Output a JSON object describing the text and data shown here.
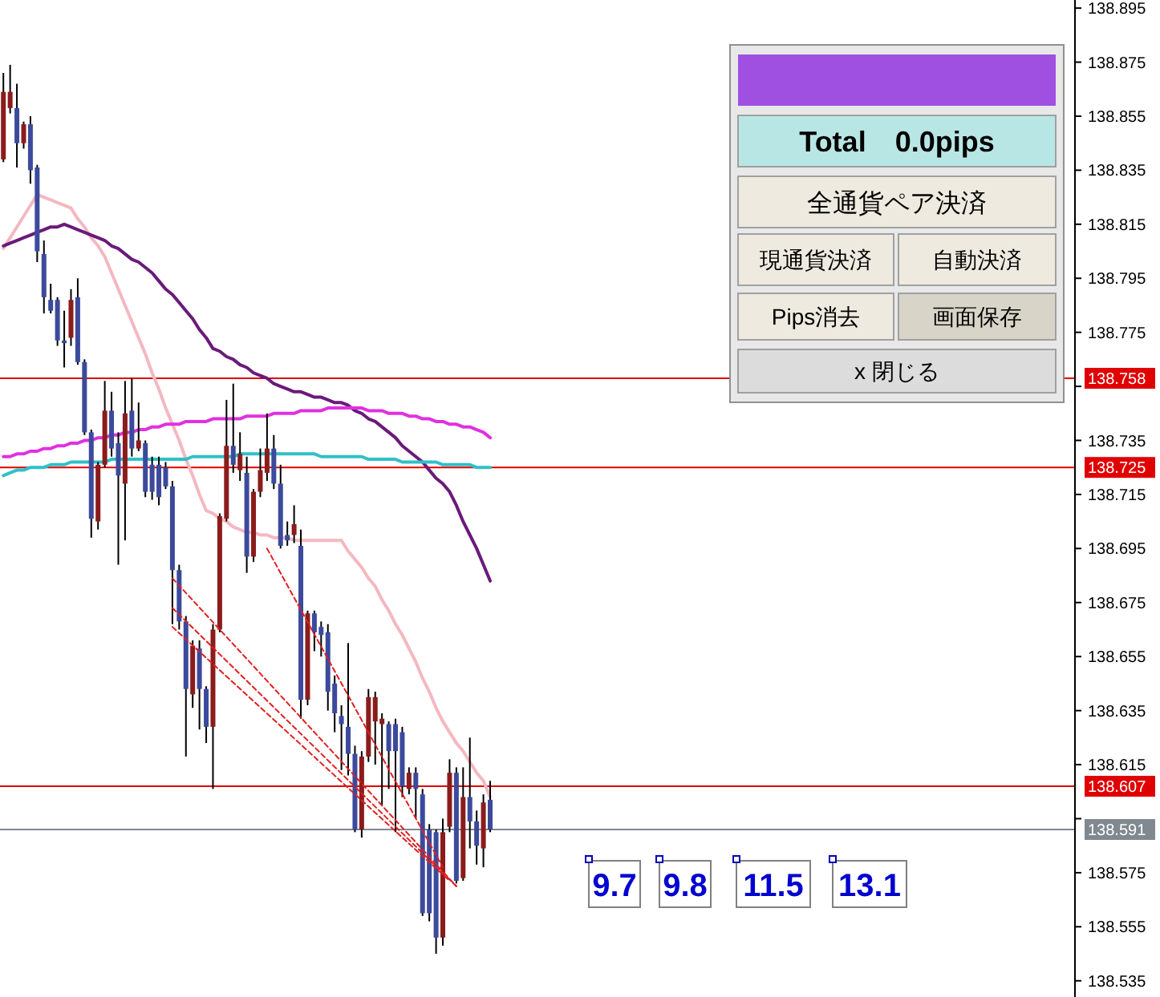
{
  "chart_data": {
    "type": "candlestick",
    "categories": [
      null,
      null,
      null,
      null,
      null,
      null,
      null,
      null,
      null,
      null,
      null,
      null,
      null,
      null,
      null,
      null,
      null,
      null,
      null,
      null,
      null,
      null,
      null,
      null,
      null,
      null,
      null,
      null,
      null,
      null,
      null,
      null,
      null,
      null,
      null,
      null,
      null,
      null,
      null,
      null,
      null,
      null,
      null,
      null,
      null,
      null,
      null,
      null,
      null,
      null,
      null,
      null,
      null,
      null,
      null,
      null,
      null,
      null,
      null,
      null,
      null,
      null,
      null,
      null,
      null,
      null,
      null,
      null,
      null,
      null,
      null,
      null,
      null,
      null,
      null,
      null,
      null,
      null,
      null,
      null,
      null,
      null,
      null,
      null,
      null,
      null,
      null,
      null,
      null,
      null,
      null,
      null,
      null,
      null,
      null,
      null,
      null,
      null,
      null,
      null,
      null,
      null,
      null,
      null,
      null,
      null,
      null,
      null,
      null,
      null,
      null,
      null,
      null,
      null,
      null,
      null,
      null,
      null,
      null,
      null,
      null,
      null,
      null,
      null,
      null,
      null,
      null,
      null,
      null,
      null,
      null,
      null,
      null,
      null,
      null,
      null,
      null,
      null,
      null,
      null,
      null,
      null,
      null,
      null,
      null,
      null,
      null,
      null,
      null,
      null,
      null,
      null,
      null,
      null,
      null,
      null,
      null,
      null,
      null
    ],
    "ohlc": [
      [
        138.839,
        138.871,
        138.838,
        138.864
      ],
      [
        138.858,
        138.874,
        138.856,
        138.864
      ],
      [
        138.858,
        138.867,
        138.836,
        138.845
      ],
      [
        138.845,
        138.853,
        138.843,
        138.852
      ],
      [
        138.852,
        138.855,
        138.83,
        138.835
      ],
      [
        138.836,
        138.837,
        138.801,
        138.805
      ],
      [
        138.804,
        138.809,
        138.782,
        138.788
      ],
      [
        138.787,
        138.793,
        138.782,
        138.783
      ],
      [
        138.787,
        138.788,
        138.77,
        138.772
      ],
      [
        138.772,
        138.783,
        138.762,
        138.771
      ],
      [
        138.773,
        138.791,
        138.77,
        138.787
      ],
      [
        138.788,
        138.795,
        138.763,
        138.764
      ],
      [
        138.764,
        138.765,
        138.737,
        138.738
      ],
      [
        138.738,
        138.739,
        138.699,
        138.706
      ],
      [
        138.705,
        138.727,
        138.702,
        138.726
      ],
      [
        138.726,
        138.757,
        138.725,
        138.746
      ],
      [
        138.746,
        138.753,
        138.729,
        138.732
      ],
      [
        138.734,
        138.738,
        138.689,
        138.722
      ],
      [
        138.719,
        138.757,
        138.698,
        138.745
      ],
      [
        138.746,
        138.758,
        138.729,
        138.732
      ],
      [
        138.732,
        138.749,
        138.731,
        138.735
      ],
      [
        138.734,
        138.735,
        138.714,
        138.716
      ],
      [
        138.726,
        138.729,
        138.713,
        138.716
      ],
      [
        138.726,
        138.729,
        138.711,
        138.714
      ],
      [
        138.725,
        138.727,
        138.717,
        138.718
      ],
      [
        138.718,
        138.72,
        138.667,
        138.687
      ],
      [
        138.687,
        138.689,
        138.665,
        138.668
      ],
      [
        138.668,
        138.67,
        138.618,
        138.643
      ],
      [
        138.641,
        138.661,
        138.636,
        138.659
      ],
      [
        138.658,
        138.661,
        138.628,
        138.643
      ],
      [
        138.643,
        138.644,
        138.623,
        138.629
      ],
      [
        138.629,
        138.667,
        138.606,
        138.665
      ],
      [
        138.665,
        138.708,
        138.664,
        138.707
      ],
      [
        138.706,
        138.75,
        138.705,
        138.733
      ],
      [
        138.733,
        138.756,
        138.723,
        138.726
      ],
      [
        138.724,
        138.738,
        138.72,
        138.73
      ],
      [
        138.723,
        138.729,
        138.686,
        138.692
      ],
      [
        138.692,
        138.717,
        138.69,
        138.716
      ],
      [
        138.716,
        138.732,
        138.714,
        138.724
      ],
      [
        138.723,
        138.745,
        138.72,
        138.732
      ],
      [
        138.732,
        138.737,
        138.717,
        138.719
      ],
      [
        138.719,
        138.726,
        138.695,
        138.696
      ],
      [
        138.7,
        138.705,
        138.696,
        138.698
      ],
      [
        138.7,
        138.711,
        138.697,
        138.704
      ],
      [
        138.696,
        138.702,
        138.632,
        138.639
      ],
      [
        138.639,
        138.672,
        138.637,
        138.671
      ],
      [
        138.671,
        138.672,
        138.657,
        138.664
      ],
      [
        138.666,
        138.668,
        138.655,
        138.663
      ],
      [
        138.664,
        138.667,
        138.635,
        138.642
      ],
      [
        138.645,
        138.648,
        138.627,
        138.634
      ],
      [
        138.633,
        138.637,
        138.613,
        138.63
      ],
      [
        138.629,
        138.66,
        138.611,
        138.619
      ],
      [
        138.619,
        138.622,
        138.59,
        138.591
      ],
      [
        138.591,
        138.62,
        138.588,
        138.618
      ],
      [
        138.618,
        138.643,
        138.616,
        138.64
      ],
      [
        138.631,
        138.642,
        138.615,
        138.64
      ],
      [
        138.63,
        138.634,
        138.6,
        138.632
      ],
      [
        138.63,
        138.631,
        138.606,
        138.62
      ],
      [
        138.63,
        138.632,
        138.59,
        138.62
      ],
      [
        138.627,
        138.629,
        138.603,
        138.607
      ],
      [
        138.606,
        138.614,
        138.604,
        138.612
      ],
      [
        138.612,
        138.614,
        138.595,
        138.606
      ],
      [
        138.604,
        138.606,
        138.559,
        138.56
      ],
      [
        138.591,
        138.593,
        138.557,
        138.56
      ],
      [
        138.59,
        138.591,
        138.545,
        138.551
      ],
      [
        138.551,
        138.595,
        138.548,
        138.59
      ],
      [
        138.592,
        138.617,
        138.59,
        138.612
      ],
      [
        138.612,
        138.614,
        138.571,
        138.572
      ],
      [
        138.573,
        138.614,
        138.572,
        138.603
      ],
      [
        138.603,
        138.625,
        138.584,
        138.594
      ],
      [
        138.594,
        138.598,
        138.578,
        138.585
      ],
      [
        138.584,
        138.604,
        138.577,
        138.601
      ],
      [
        138.602,
        138.609,
        138.59,
        138.591
      ],
      null,
      null,
      null,
      null,
      null,
      null,
      null,
      null,
      null,
      null,
      null,
      null,
      null,
      null,
      null,
      null,
      null,
      null,
      null,
      null,
      null,
      null,
      null,
      null,
      null,
      null,
      null,
      null,
      null,
      null,
      null,
      null,
      null,
      null,
      null,
      null,
      null,
      null,
      null,
      null,
      null,
      null,
      null,
      null,
      null,
      null,
      null,
      null,
      null,
      null,
      null,
      null,
      null,
      null,
      null,
      null,
      null,
      null,
      null,
      null,
      null,
      null,
      null,
      null,
      null,
      null,
      null,
      null,
      null,
      null,
      null,
      null,
      null,
      null,
      null,
      null,
      null,
      null,
      null,
      null,
      null,
      null,
      null,
      null,
      null,
      null
    ],
    "colors": [
      "#8b1c1c",
      "#8b1c1c",
      "#3c4a9c",
      "#8b1c1c",
      "#3c4a9c",
      "#3c4a9c",
      "#3c4a9c",
      "#3c4a9c",
      "#3c4a9c",
      "#3c4a9c",
      "#8b1c1c",
      "#3c4a9c",
      "#3c4a9c",
      "#3c4a9c",
      "#8b1c1c",
      "#8b1c1c",
      "#3c4a9c",
      "#3c4a9c",
      "#8b1c1c",
      "#3c4a9c",
      "#8b1c1c",
      "#3c4a9c",
      "#3c4a9c",
      "#3c4a9c",
      "#3c4a9c",
      "#3c4a9c",
      "#3c4a9c",
      "#3c4a9c",
      "#8b1c1c",
      "#3c4a9c",
      "#3c4a9c",
      "#8b1c1c",
      "#8b1c1c",
      "#8b1c1c",
      "#3c4a9c",
      "#8b1c1c",
      "#3c4a9c",
      "#8b1c1c",
      "#8b1c1c",
      "#8b1c1c",
      "#3c4a9c",
      "#3c4a9c",
      "#3c4a9c",
      "#8b1c1c",
      "#3c4a9c",
      "#8b1c1c",
      "#3c4a9c",
      "#3c4a9c",
      "#3c4a9c",
      "#3c4a9c",
      "#3c4a9c",
      "#3c4a9c",
      "#3c4a9c",
      "#8b1c1c",
      "#8b1c1c",
      "#8b1c1c",
      "#8b1c1c",
      "#3c4a9c",
      "#3c4a9c",
      "#3c4a9c",
      "#8b1c1c",
      "#3c4a9c",
      "#3c4a9c",
      "#3c4a9c",
      "#3c4a9c",
      "#8b1c1c",
      "#8b1c1c",
      "#3c4a9c",
      "#8b1c1c",
      "#3c4a9c",
      "#3c4a9c",
      "#8b1c1c",
      "#3c4a9c",
      null,
      null,
      null,
      null,
      null,
      null,
      null,
      null,
      null,
      null,
      null,
      null,
      null,
      null,
      null,
      null,
      null,
      null,
      null,
      null,
      null,
      null,
      null,
      null,
      null,
      null,
      null,
      null,
      null,
      null,
      null,
      null,
      null,
      null,
      null,
      null,
      null,
      null,
      null,
      null,
      null,
      null,
      null,
      null,
      null,
      null,
      null,
      null,
      null,
      null,
      null,
      null,
      null,
      null,
      null,
      null,
      null,
      null,
      null,
      null,
      null,
      null,
      null,
      null,
      null,
      null,
      null,
      null,
      null,
      null,
      null,
      null,
      null,
      null,
      null,
      null,
      null,
      null,
      null,
      null,
      null,
      null,
      null,
      null,
      null,
      null
    ],
    "series": [
      {
        "type": "line",
        "color": "#f4b8c0",
        "values": [
          138.806,
          138.81,
          138.814,
          138.818,
          138.822,
          138.826,
          138.825,
          138.824,
          138.823,
          138.822,
          138.821,
          138.817,
          138.814,
          138.81,
          138.807,
          138.803,
          138.797,
          138.791,
          138.785,
          138.779,
          138.773,
          138.767,
          138.76,
          138.754,
          138.747,
          138.741,
          138.735,
          138.728,
          138.722,
          138.715,
          138.709,
          138.708,
          138.706,
          138.705,
          138.703,
          138.702,
          138.701,
          138.701,
          138.7,
          138.7,
          138.699,
          138.699,
          138.699,
          138.698,
          138.698,
          138.698,
          138.698,
          138.698,
          138.698,
          138.698,
          138.698,
          138.694,
          138.691,
          138.688,
          138.684,
          138.681,
          138.676,
          138.672,
          138.667,
          138.663,
          138.658,
          138.653,
          138.647,
          138.642,
          138.636,
          138.631,
          138.627,
          138.623,
          138.62,
          138.616,
          138.612,
          138.609,
          138.603,
          null,
          null,
          null,
          null,
          null,
          null,
          null,
          null,
          null,
          null,
          null,
          null,
          null,
          null,
          null,
          null,
          null,
          null,
          null,
          null,
          null,
          null,
          null,
          null,
          null,
          null,
          null,
          null,
          null,
          null,
          null,
          null,
          null,
          null,
          null,
          null,
          null,
          null,
          null,
          null,
          null,
          null,
          null,
          null,
          null,
          null,
          null,
          null,
          null,
          null,
          null,
          null,
          null,
          null,
          null,
          null,
          null,
          null,
          null,
          null,
          null,
          null,
          null,
          null,
          null,
          null,
          null,
          null,
          null,
          null,
          null,
          null,
          null,
          null,
          null,
          null,
          null,
          null,
          null,
          null,
          null,
          null,
          null,
          null,
          null,
          null
        ]
      },
      {
        "type": "line",
        "color": "#6a1a7a",
        "values": [
          138.807,
          138.808,
          138.809,
          138.81,
          138.811,
          138.812,
          138.813,
          138.814,
          138.814,
          138.815,
          138.814,
          138.813,
          138.812,
          138.811,
          138.81,
          138.809,
          138.807,
          138.806,
          138.804,
          138.802,
          138.801,
          138.799,
          138.797,
          138.794,
          138.791,
          138.789,
          138.786,
          138.783,
          138.78,
          138.776,
          138.773,
          138.769,
          138.768,
          138.766,
          138.765,
          138.763,
          138.762,
          138.76,
          138.759,
          138.758,
          138.756,
          138.755,
          138.754,
          138.753,
          138.753,
          138.752,
          138.751,
          138.751,
          138.75,
          138.749,
          138.749,
          138.748,
          138.746,
          138.745,
          138.743,
          138.742,
          138.74,
          138.738,
          138.736,
          138.733,
          138.731,
          138.729,
          138.727,
          138.724,
          138.721,
          138.719,
          138.716,
          138.711,
          138.705,
          138.7,
          138.695,
          138.689,
          138.683,
          null,
          null,
          null,
          null,
          null,
          null,
          null,
          null,
          null,
          null,
          null,
          null,
          null,
          null,
          null,
          null,
          null,
          null,
          null,
          null,
          null,
          null,
          null,
          null,
          null,
          null,
          null,
          null,
          null,
          null,
          null,
          null,
          null,
          null,
          null,
          null,
          null,
          null,
          null,
          null,
          null,
          null,
          null,
          null,
          null,
          null,
          null,
          null,
          null,
          null,
          null,
          null,
          null,
          null,
          null,
          null,
          null,
          null,
          null,
          null,
          null,
          null,
          null,
          null,
          null,
          null,
          null,
          null,
          null,
          null,
          null,
          null,
          null,
          null,
          null,
          null,
          null,
          null,
          null,
          null,
          null,
          null,
          null,
          null,
          null,
          null
        ]
      },
      {
        "type": "line",
        "color": "#e030e0",
        "values": [
          138.729,
          138.729,
          138.73,
          138.73,
          138.731,
          138.731,
          138.732,
          138.732,
          138.733,
          138.733,
          138.734,
          138.734,
          138.735,
          138.735,
          138.736,
          138.736,
          138.737,
          138.737,
          138.738,
          138.738,
          138.739,
          138.739,
          138.74,
          138.74,
          138.741,
          138.741,
          138.741,
          138.742,
          138.742,
          138.742,
          138.742,
          138.743,
          138.743,
          138.743,
          138.743,
          138.743,
          138.744,
          138.744,
          138.744,
          138.744,
          138.745,
          138.745,
          138.745,
          138.745,
          138.746,
          138.746,
          138.746,
          138.746,
          138.747,
          138.747,
          138.747,
          138.747,
          138.747,
          138.747,
          138.746,
          138.746,
          138.746,
          138.745,
          138.745,
          138.745,
          138.744,
          138.744,
          138.743,
          138.743,
          138.742,
          138.742,
          138.741,
          138.741,
          138.74,
          138.74,
          138.739,
          138.738,
          138.736,
          null,
          null,
          null,
          null,
          null,
          null,
          null,
          null,
          null,
          null,
          null,
          null,
          null,
          null,
          null,
          null,
          null,
          null,
          null,
          null,
          null,
          null,
          null,
          null,
          null,
          null,
          null,
          null,
          null,
          null,
          null,
          null,
          null,
          null,
          null,
          null,
          null,
          null,
          null,
          null,
          null,
          null,
          null,
          null,
          null,
          null,
          null,
          null,
          null,
          null,
          null,
          null,
          null,
          null,
          null,
          null,
          null,
          null,
          null,
          null,
          null,
          null,
          null,
          null,
          null,
          null,
          null,
          null,
          null,
          null,
          null,
          null,
          null,
          null,
          null,
          null,
          null,
          null,
          null,
          null,
          null,
          null,
          null,
          null,
          null,
          null
        ]
      },
      {
        "type": "line",
        "color": "#30c0c8",
        "values": [
          138.722,
          138.723,
          138.724,
          138.724,
          138.725,
          138.725,
          138.725,
          138.726,
          138.726,
          138.726,
          138.727,
          138.727,
          138.727,
          138.727,
          138.727,
          138.727,
          138.728,
          138.728,
          138.728,
          138.728,
          138.728,
          138.728,
          138.728,
          138.728,
          138.728,
          138.728,
          138.728,
          138.728,
          138.729,
          138.729,
          138.729,
          138.729,
          138.729,
          138.729,
          138.729,
          138.73,
          138.73,
          138.73,
          138.73,
          138.73,
          138.73,
          138.73,
          138.73,
          138.73,
          138.73,
          138.73,
          138.73,
          138.729,
          138.729,
          138.729,
          138.729,
          138.729,
          138.729,
          138.729,
          138.728,
          138.728,
          138.728,
          138.728,
          138.728,
          138.727,
          138.727,
          138.727,
          138.727,
          138.727,
          138.727,
          138.726,
          138.726,
          138.726,
          138.726,
          138.726,
          138.725,
          138.725,
          138.725,
          null,
          null,
          null,
          null,
          null,
          null,
          null,
          null,
          null,
          null,
          null,
          null,
          null,
          null,
          null,
          null,
          null,
          null,
          null,
          null,
          null,
          null,
          null,
          null,
          null,
          null,
          null,
          null,
          null,
          null,
          null,
          null,
          null,
          null,
          null,
          null,
          null,
          null,
          null,
          null,
          null,
          null,
          null,
          null,
          null,
          null,
          null,
          null,
          null,
          null,
          null,
          null,
          null,
          null,
          null,
          null,
          null,
          null,
          null,
          null,
          null,
          null,
          null,
          null,
          null,
          null,
          null,
          null,
          null,
          null,
          null,
          null,
          null,
          null,
          null,
          null,
          null,
          null,
          null,
          null,
          null,
          null,
          null,
          null,
          null,
          null
        ]
      },
      {
        "type": "line",
        "color": "#e02020",
        "line_style": "dashed",
        "values": [
          null,
          null,
          null,
          null,
          null,
          null,
          null,
          null,
          null,
          null,
          null,
          null,
          null,
          null,
          null,
          null,
          null,
          null,
          null,
          null,
          null,
          null,
          null,
          null,
          null,
          138.684,
          null,
          null,
          null,
          null,
          null,
          null,
          null,
          null,
          null,
          null,
          null,
          null,
          null,
          null,
          null,
          null,
          null,
          null,
          null,
          null,
          null,
          null,
          null,
          null,
          null,
          null,
          null,
          null,
          null,
          null,
          null,
          null,
          null,
          null,
          null,
          null,
          null,
          null,
          null,
          null,
          null,
          138.57,
          null,
          null,
          null,
          null,
          null,
          null,
          null,
          null,
          null,
          null,
          null,
          null,
          null,
          null,
          null,
          null,
          null,
          null,
          null,
          null,
          null,
          null,
          null,
          null,
          null,
          null,
          null,
          null,
          null,
          null,
          null,
          null,
          null,
          null,
          null,
          null,
          null,
          null,
          null,
          null,
          null,
          null,
          null,
          null,
          null,
          null,
          null,
          null,
          null,
          null,
          null,
          null,
          null,
          null,
          null,
          null,
          null,
          null,
          null,
          null,
          null,
          null,
          null,
          null,
          null,
          null,
          null,
          null,
          null,
          null,
          null,
          null,
          null,
          null,
          null,
          null,
          null,
          null,
          null,
          null,
          null,
          null,
          null,
          null,
          null,
          null,
          null,
          null,
          null,
          null,
          null
        ]
      },
      {
        "type": "line",
        "color": "#e02020",
        "line_style": "dashed",
        "values": [
          null,
          null,
          null,
          null,
          null,
          null,
          null,
          null,
          null,
          null,
          null,
          null,
          null,
          null,
          null,
          null,
          null,
          null,
          null,
          null,
          null,
          null,
          null,
          null,
          null,
          138.673,
          null,
          null,
          null,
          null,
          null,
          null,
          null,
          null,
          null,
          null,
          null,
          null,
          null,
          null,
          null,
          null,
          null,
          null,
          null,
          null,
          null,
          null,
          null,
          null,
          null,
          null,
          null,
          null,
          null,
          null,
          null,
          null,
          null,
          null,
          null,
          null,
          null,
          null,
          null,
          null,
          null,
          138.57,
          null,
          null,
          null,
          null,
          null,
          null,
          null,
          null,
          null,
          null,
          null,
          null,
          null,
          null,
          null,
          null,
          null,
          null,
          null,
          null,
          null,
          null,
          null,
          null,
          null,
          null,
          null,
          null,
          null,
          null,
          null,
          null,
          null,
          null,
          null,
          null,
          null,
          null,
          null,
          null,
          null,
          null,
          null,
          null,
          null,
          null,
          null,
          null,
          null,
          null,
          null,
          null,
          null,
          null,
          null,
          null,
          null,
          null,
          null,
          null,
          null,
          null,
          null,
          null,
          null,
          null,
          null,
          null,
          null,
          null,
          null,
          null,
          null,
          null,
          null,
          null,
          null,
          null,
          null,
          null,
          null,
          null,
          null,
          null,
          null,
          null,
          null,
          null,
          null,
          null,
          null
        ]
      },
      {
        "type": "line",
        "color": "#e02020",
        "line_style": "dashed",
        "values": [
          null,
          null,
          null,
          null,
          null,
          null,
          null,
          null,
          null,
          null,
          null,
          null,
          null,
          null,
          null,
          null,
          null,
          null,
          null,
          null,
          null,
          null,
          null,
          null,
          null,
          138.666,
          null,
          null,
          null,
          null,
          null,
          null,
          null,
          null,
          null,
          null,
          null,
          null,
          null,
          null,
          null,
          null,
          null,
          null,
          null,
          null,
          null,
          null,
          null,
          null,
          null,
          null,
          null,
          null,
          null,
          null,
          null,
          null,
          null,
          null,
          null,
          null,
          null,
          null,
          null,
          null,
          138.572,
          null,
          null,
          null,
          null,
          null,
          null,
          null,
          null,
          null,
          null,
          null,
          null,
          null,
          null,
          null,
          null,
          null,
          null,
          null,
          null,
          null,
          null,
          null,
          null,
          null,
          null,
          null,
          null,
          null,
          null,
          null,
          null,
          null,
          null,
          null,
          null,
          null,
          null,
          null,
          null,
          null,
          null,
          null,
          null,
          null,
          null,
          null,
          null,
          null,
          null,
          null,
          null,
          null,
          null,
          null,
          null,
          null,
          null,
          null,
          null,
          null,
          null,
          null,
          null,
          null,
          null,
          null,
          null,
          null,
          null,
          null,
          null,
          null,
          null,
          null,
          null,
          null,
          null,
          null,
          null,
          null,
          null,
          null,
          null,
          null,
          null,
          null,
          null,
          null,
          null,
          null,
          null
        ]
      },
      {
        "type": "line",
        "color": "#e02020",
        "line_style": "dashed",
        "values": [
          null,
          null,
          null,
          null,
          null,
          null,
          null,
          null,
          null,
          null,
          null,
          null,
          null,
          null,
          null,
          null,
          null,
          null,
          null,
          null,
          null,
          null,
          null,
          null,
          null,
          null,
          null,
          null,
          null,
          null,
          null,
          null,
          null,
          null,
          null,
          null,
          null,
          null,
          null,
          138.695,
          null,
          null,
          null,
          null,
          null,
          null,
          null,
          null,
          null,
          null,
          null,
          null,
          null,
          null,
          null,
          null,
          null,
          null,
          null,
          null,
          null,
          null,
          null,
          null,
          null,
          138.577,
          null,
          null,
          null,
          null,
          null,
          null,
          null,
          null,
          null,
          null,
          null,
          null,
          null,
          null,
          null,
          null,
          null,
          null,
          null,
          null,
          null,
          null,
          null,
          null,
          null,
          null,
          null,
          null,
          null,
          null,
          null,
          null,
          null,
          null,
          null,
          null,
          null,
          null,
          null,
          null,
          null,
          null,
          null,
          null,
          null,
          null,
          null,
          null,
          null,
          null,
          null,
          null,
          null,
          null,
          null,
          null,
          null,
          null,
          null,
          null,
          null,
          null,
          null,
          null,
          null,
          null,
          null,
          null,
          null,
          null,
          null,
          null,
          null,
          null,
          null,
          null,
          null,
          null,
          null,
          null,
          null,
          null,
          null,
          null,
          null,
          null,
          null,
          null,
          null,
          null,
          null,
          null,
          null
        ]
      }
    ],
    "ylim": [
      138.529,
      138.898
    ],
    "yticks": [
      138.535,
      138.555,
      138.575,
      {
        "value": 138.595,
        "label": null
      },
      138.615,
      138.635,
      138.655,
      138.675,
      138.695,
      138.715,
      138.735,
      {
        "value": 138.755,
        "label": null
      },
      138.775,
      138.795,
      138.815,
      138.835,
      138.855,
      138.875,
      138.895
    ],
    "tick_labels": "y",
    "ref_lines": [
      {
        "axis": "y",
        "value": 138.758,
        "label": "138.758",
        "color": "#e00000"
      },
      {
        "axis": "y",
        "value": 138.725,
        "label": "138.725",
        "color": "#e00000"
      },
      {
        "axis": "y",
        "value": 138.607,
        "label": "138.607",
        "color": "#e00000"
      },
      {
        "axis": "y",
        "value": 138.591,
        "label": "138.591",
        "color": "#808890"
      }
    ],
    "annotations": [
      "9.7",
      "9.8",
      "11.5",
      "13.1",
      "Total　0.0pips",
      "全通貨ペア決済",
      "現通貨決済",
      "自動決済",
      "Pips消去",
      "画面保存",
      "x 閉じる"
    ]
  }
}
